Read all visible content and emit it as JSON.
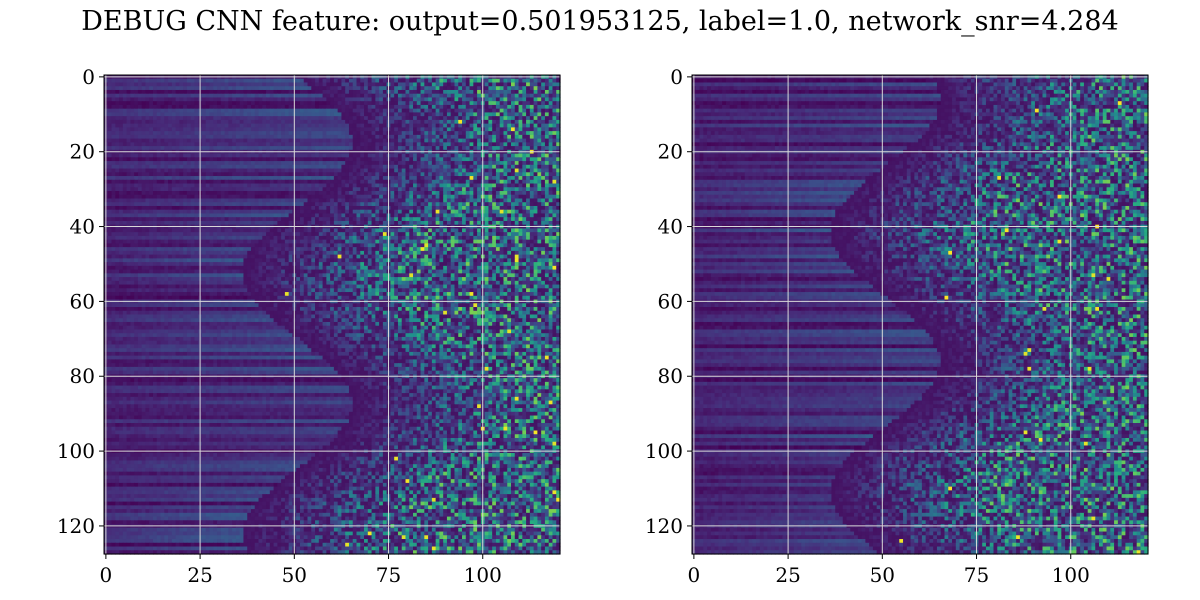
{
  "figure": {
    "title": "DEBUG CNN feature: output=0.501953125, label=1.0, network_snr=4.284"
  },
  "chart_data": [
    {
      "type": "heatmap",
      "colormap": "viridis",
      "xlim": [
        0,
        121
      ],
      "ylim": [
        128,
        0
      ],
      "xticks": [
        0,
        25,
        50,
        75,
        100
      ],
      "yticks": [
        0,
        20,
        40,
        60,
        80,
        100,
        120
      ],
      "grid": true,
      "grid_color": "#d9d9d9",
      "pattern": "low values (dark purple) on left, rising noisy mid/high values (blue-green, occasional yellow) toward the right",
      "seed": 7,
      "rows": 128,
      "cols": 121
    },
    {
      "type": "heatmap",
      "colormap": "viridis",
      "xlim": [
        0,
        121
      ],
      "ylim": [
        128,
        0
      ],
      "xticks": [
        0,
        25,
        50,
        75,
        100
      ],
      "yticks": [
        0,
        20,
        40,
        60,
        80,
        100,
        120
      ],
      "grid": true,
      "grid_color": "#d9d9d9",
      "pattern": "low values (dark purple) on left, rising noisy mid/high values (blue-green, occasional yellow) toward the right",
      "seed": 19,
      "rows": 128,
      "cols": 121
    }
  ]
}
